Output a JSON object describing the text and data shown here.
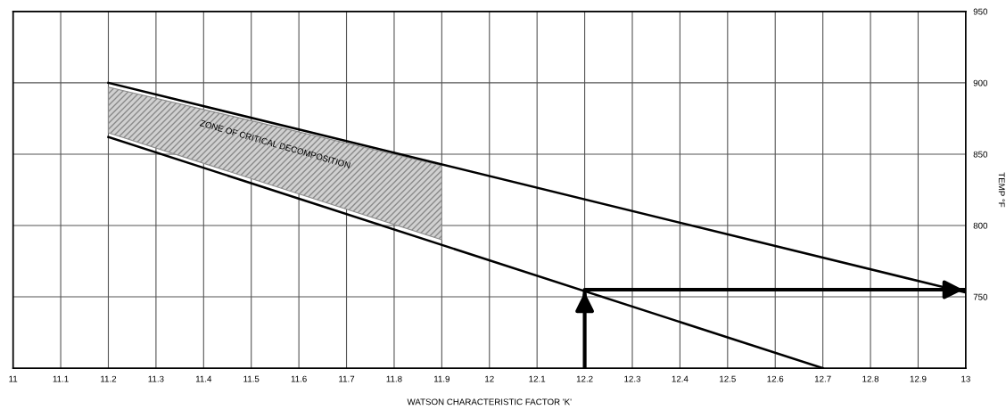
{
  "chart_data": {
    "type": "line",
    "xlabel": "WATSON CHARACTERISTIC FACTOR 'K'",
    "ylabel": "TEMP °F",
    "series": [
      {
        "type": "area",
        "x": [
          11.2,
          11.9
        ],
        "values": [
          null,
          null
        ],
        "lower": [
          865,
          790
        ],
        "upper": [
          897,
          842
        ],
        "color": "#8a8a8a"
      },
      {
        "x": [
          11.2,
          13
        ],
        "values": [
          900,
          753
        ],
        "color": "#000000"
      },
      {
        "x": [
          11.2,
          12.7
        ],
        "values": [
          862,
          700
        ],
        "color": "#000000"
      },
      {
        "x": [
          12.2,
          12.2,
          13
        ],
        "values": [
          700,
          755,
          755
        ],
        "color": "#000000"
      }
    ],
    "annotations": [
      "ZONE OF CRITICAL DECOMPOSITION"
    ],
    "xlim": [
      11,
      13
    ],
    "xticks": [
      11,
      11.1,
      11.2,
      11.3,
      11.4,
      11.5,
      11.6,
      11.7,
      11.8,
      11.9,
      12,
      12.1,
      12.2,
      12.3,
      12.4,
      12.5,
      12.6,
      12.7,
      12.8,
      12.9,
      13
    ],
    "ylim": [
      700,
      950
    ],
    "yticks": [
      750,
      800,
      850,
      900,
      950
    ],
    "grid": true,
    "legend": false,
    "marker": "none",
    "line_style": "solid"
  }
}
